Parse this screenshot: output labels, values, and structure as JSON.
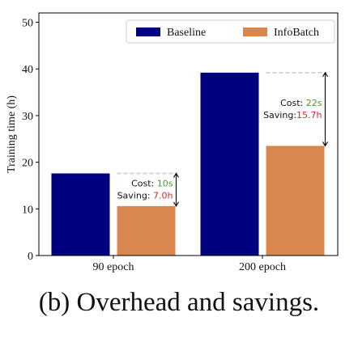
{
  "caption": "(b) Overhead and savings.",
  "chart_data": {
    "type": "bar",
    "ylabel": "Training time (h)",
    "ylim": [
      0,
      52
    ],
    "yticks": [
      0,
      10,
      20,
      30,
      40,
      50
    ],
    "categories": [
      "90 epoch",
      "200 epoch"
    ],
    "series": [
      {
        "name": "Baseline",
        "color": "#000080",
        "values": [
          17.6,
          39.2
        ]
      },
      {
        "name": "InfoBatch",
        "color": "#d8874e",
        "values": [
          10.6,
          23.5
        ]
      }
    ],
    "legend": {
      "placement": "top-right",
      "entries": [
        "Baseline",
        "InfoBatch"
      ]
    },
    "grid": false,
    "annotations": [
      {
        "cost_label": "Cost: ",
        "cost_value": "10s",
        "saving_label": "Saving: ",
        "saving_value": "7.0h"
      },
      {
        "cost_label": "Cost: ",
        "cost_value": "22s",
        "saving_label": "Saving:",
        "saving_value": "15.7h"
      }
    ],
    "colors": {
      "cost": "#4c9a2a",
      "saving": "#d62728",
      "reference_line": "#c8c8c8"
    }
  }
}
